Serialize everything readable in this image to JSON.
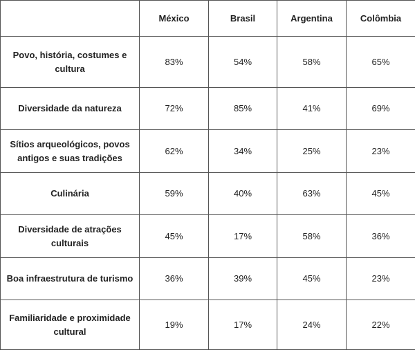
{
  "table": {
    "columns": [
      "",
      "México",
      "Brasil",
      "Argentina",
      "Colômbia"
    ],
    "rows": [
      {
        "label": "Povo, história, costumes e cultura",
        "values": [
          "83%",
          "54%",
          "58%",
          "65%"
        ]
      },
      {
        "label": "Diversidade da natureza",
        "values": [
          "72%",
          "85%",
          "41%",
          "69%"
        ]
      },
      {
        "label": "Sítios arqueológicos, povos antigos e suas tradições",
        "values": [
          "62%",
          "34%",
          "25%",
          "23%"
        ]
      },
      {
        "label": "Culinária",
        "values": [
          "59%",
          "40%",
          "63%",
          "45%"
        ]
      },
      {
        "label": "Diversidade de atrações culturais",
        "values": [
          "45%",
          "17%",
          "58%",
          "36%"
        ]
      },
      {
        "label": "Boa infraestrutura de turismo",
        "values": [
          "36%",
          "39%",
          "45%",
          "23%"
        ]
      },
      {
        "label": "Familiaridade e proximidade cultural",
        "values": [
          "19%",
          "17%",
          "24%",
          "22%"
        ]
      }
    ]
  }
}
